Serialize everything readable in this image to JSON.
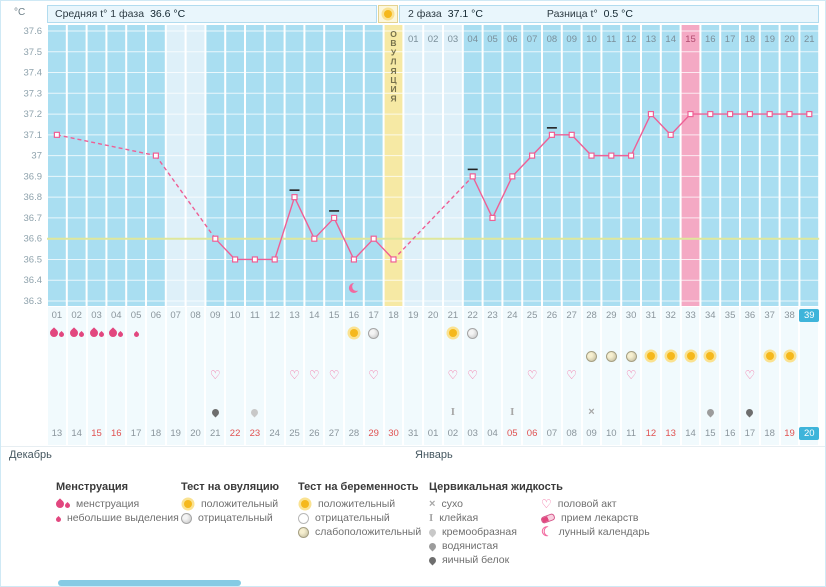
{
  "header": {
    "unit": "°C",
    "phase1_label": "Средняя t° 1 фаза",
    "phase1_value": "36.6 °C",
    "phase2_label": "2 фаза",
    "phase2_value": "37.1 °C",
    "diff_label": "Разница t°",
    "diff_value": "0.5 °C"
  },
  "chart_data": {
    "type": "line",
    "ylabel": "°C",
    "ylim": [
      36.3,
      37.6
    ],
    "y_ticks": [
      37.6,
      37.5,
      37.4,
      37.3,
      37.2,
      37.1,
      37.0,
      36.9,
      36.8,
      36.7,
      36.6,
      36.5,
      36.4,
      36.3
    ],
    "coverline": 36.6,
    "x_is_cycle_day": true,
    "temperatures": [
      37.1,
      null,
      null,
      null,
      null,
      37.0,
      null,
      null,
      36.6,
      36.5,
      36.5,
      36.5,
      36.8,
      36.6,
      36.7,
      36.5,
      36.6,
      36.5,
      null,
      null,
      null,
      36.9,
      36.7,
      36.9,
      37.0,
      37.1,
      37.1,
      37.0,
      37.0,
      37.0,
      37.2,
      37.1,
      37.2,
      37.2,
      37.2,
      37.2,
      37.2,
      37.2,
      37.2
    ],
    "outlier_tick_days": [
      13,
      15,
      22,
      26
    ],
    "ovulation_day": 18,
    "ovulation_label": "ОВУЛЯЦИЯ",
    "highlight_day": 33,
    "current_day": 39,
    "no_data_column_days": [
      7,
      8,
      19,
      20,
      21
    ],
    "moon_day": 16,
    "phase2_day_labels": {
      "start_day": 19,
      "labels": [
        "01",
        "02",
        "03",
        "04",
        "05",
        "06",
        "07",
        "08",
        "09",
        "10",
        "11",
        "12",
        "13",
        "14",
        "15",
        "16",
        "17",
        "18",
        "19",
        "20",
        "21"
      ]
    },
    "line_color": "#ef5f95",
    "column_color": "#a9def1",
    "pale_column_color": "#def0f9",
    "ovulation_column_color": "#f6e9a4",
    "highlight_column_color": "#f4a9c4",
    "coverline_color": "#dfe79b"
  },
  "day_grid": {
    "cycle_day_labels": [
      "01",
      "02",
      "03",
      "04",
      "05",
      "06",
      "07",
      "08",
      "09",
      "10",
      "11",
      "12",
      "13",
      "14",
      "15",
      "16",
      "17",
      "18",
      "19",
      "20",
      "21",
      "22",
      "23",
      "24",
      "25",
      "26",
      "27",
      "28",
      "29",
      "30",
      "31",
      "32",
      "33",
      "34",
      "35",
      "36",
      "37",
      "38",
      "39"
    ],
    "menstruation": [
      {
        "day": 1,
        "type": "flow"
      },
      {
        "day": 2,
        "type": "flow"
      },
      {
        "day": 3,
        "type": "flow"
      },
      {
        "day": 4,
        "type": "flow"
      },
      {
        "day": 5,
        "type": "spotting"
      }
    ],
    "ovulation_tests": [
      {
        "day": 16,
        "result": "positive"
      },
      {
        "day": 17,
        "result": "negative"
      },
      {
        "day": 21,
        "result": "positive"
      },
      {
        "day": 22,
        "result": "negative"
      }
    ],
    "pregnancy_tests": [
      {
        "day": 28,
        "result": "weak"
      },
      {
        "day": 29,
        "result": "weak"
      },
      {
        "day": 30,
        "result": "weak"
      },
      {
        "day": 31,
        "result": "positive"
      },
      {
        "day": 32,
        "result": "positive"
      },
      {
        "day": 33,
        "result": "positive"
      },
      {
        "day": 34,
        "result": "positive"
      },
      {
        "day": 37,
        "result": "positive"
      },
      {
        "day": 38,
        "result": "positive"
      }
    ],
    "intercourse_days": [
      9,
      13,
      14,
      15,
      17,
      21,
      22,
      25,
      27,
      30,
      36
    ],
    "medication_days": [],
    "cervical": [
      {
        "day": 9,
        "type": "eggwhite"
      },
      {
        "day": 11,
        "type": "creamy"
      },
      {
        "day": 21,
        "type": "sticky"
      },
      {
        "day": 24,
        "type": "sticky"
      },
      {
        "day": 28,
        "type": "dry"
      },
      {
        "day": 34,
        "type": "watery"
      },
      {
        "day": 36,
        "type": "eggwhite"
      }
    ],
    "dates": [
      "13",
      "14",
      "15",
      "16",
      "17",
      "18",
      "19",
      "20",
      "21",
      "22",
      "23",
      "24",
      "25",
      "26",
      "27",
      "28",
      "29",
      "30",
      "31",
      "01",
      "02",
      "03",
      "04",
      "05",
      "06",
      "07",
      "08",
      "09",
      "10",
      "11",
      "12",
      "13",
      "14",
      "15",
      "16",
      "17",
      "18",
      "19",
      "20"
    ],
    "weekend_days": [
      3,
      4,
      10,
      11,
      17,
      18,
      24,
      25,
      31,
      32,
      38
    ]
  },
  "months": [
    {
      "name": "Декабрь"
    },
    {
      "name": "Январь"
    }
  ],
  "legend": {
    "groups": [
      {
        "title": "Менструация",
        "items": [
          {
            "icon": "flow",
            "label": "менструация"
          },
          {
            "icon": "spotting",
            "label": "небольшие выделения"
          }
        ]
      },
      {
        "title": "Тест на овуляцию",
        "items": [
          {
            "icon": "positive",
            "label": "положительный"
          },
          {
            "icon": "negative",
            "label": "отрицательный"
          }
        ]
      },
      {
        "title": "Тест на беременность",
        "items": [
          {
            "icon": "positive",
            "label": "положительный"
          },
          {
            "icon": "circle-white",
            "label": "отрицательный"
          },
          {
            "icon": "weak",
            "label": "слабоположительный"
          }
        ]
      },
      {
        "title": "Цервикальная жидкость",
        "items": [
          {
            "icon": "dry",
            "label": "сухо"
          },
          {
            "icon": "sticky",
            "label": "клейкая"
          },
          {
            "icon": "creamy",
            "label": "кремообразная"
          },
          {
            "icon": "watery",
            "label": "водянистая"
          },
          {
            "icon": "eggwhite",
            "label": "яичный белок"
          }
        ]
      },
      {
        "title": "",
        "items": [
          {
            "icon": "heart",
            "label": "половой акт"
          },
          {
            "icon": "pill",
            "label": "прием лекарств"
          },
          {
            "icon": "moon",
            "label": "лунный календарь"
          }
        ]
      }
    ]
  }
}
